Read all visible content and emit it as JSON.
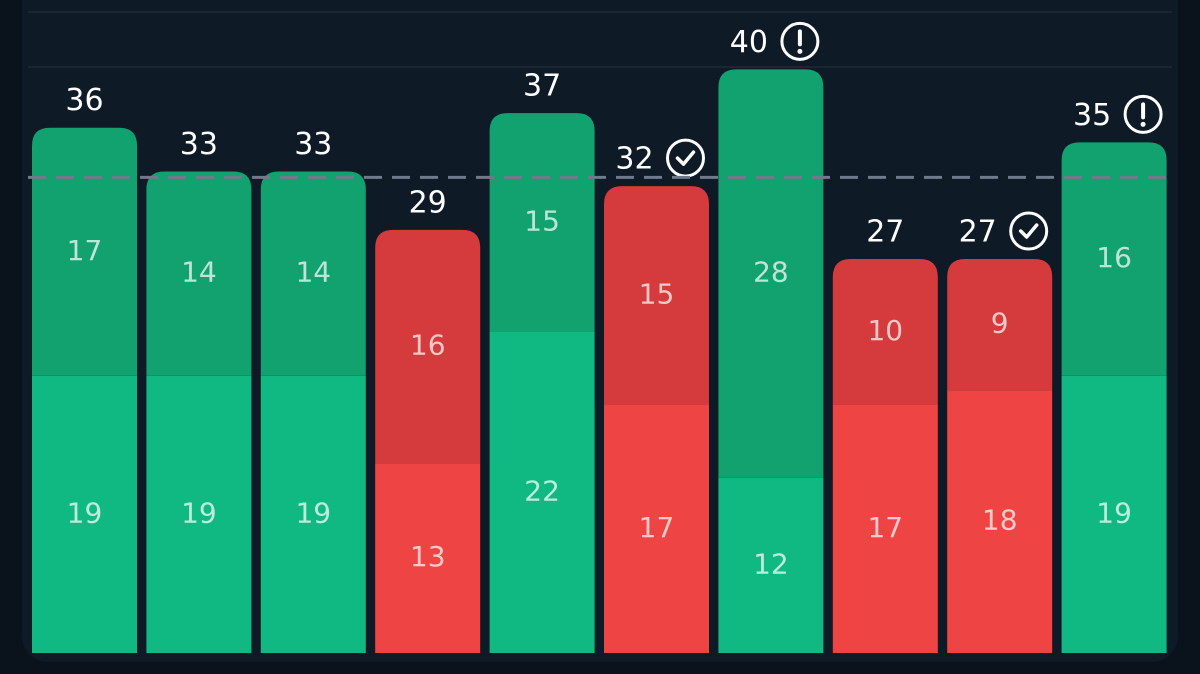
{
  "chart_data": {
    "type": "stacked_bar",
    "series": [
      {
        "values": [
          19,
          19,
          19,
          13,
          22,
          17,
          12,
          17,
          18,
          19
        ]
      },
      {
        "values": [
          17,
          14,
          14,
          16,
          15,
          15,
          28,
          10,
          9,
          16
        ]
      }
    ],
    "totals": [
      36,
      33,
      33,
      29,
      37,
      32,
      40,
      27,
      27,
      35
    ],
    "bar_palette": [
      "green",
      "green",
      "green",
      "red",
      "green",
      "red",
      "green",
      "red",
      "red",
      "green"
    ],
    "palette": {
      "green": [
        "#10b981",
        "#11a26f"
      ],
      "red": [
        "#ef4444",
        "#d53a3c"
      ]
    },
    "status": [
      null,
      null,
      null,
      null,
      null,
      "check",
      "alert",
      null,
      "check",
      "alert"
    ],
    "reference_line": 32.6,
    "ylim": [
      0,
      44
    ]
  }
}
